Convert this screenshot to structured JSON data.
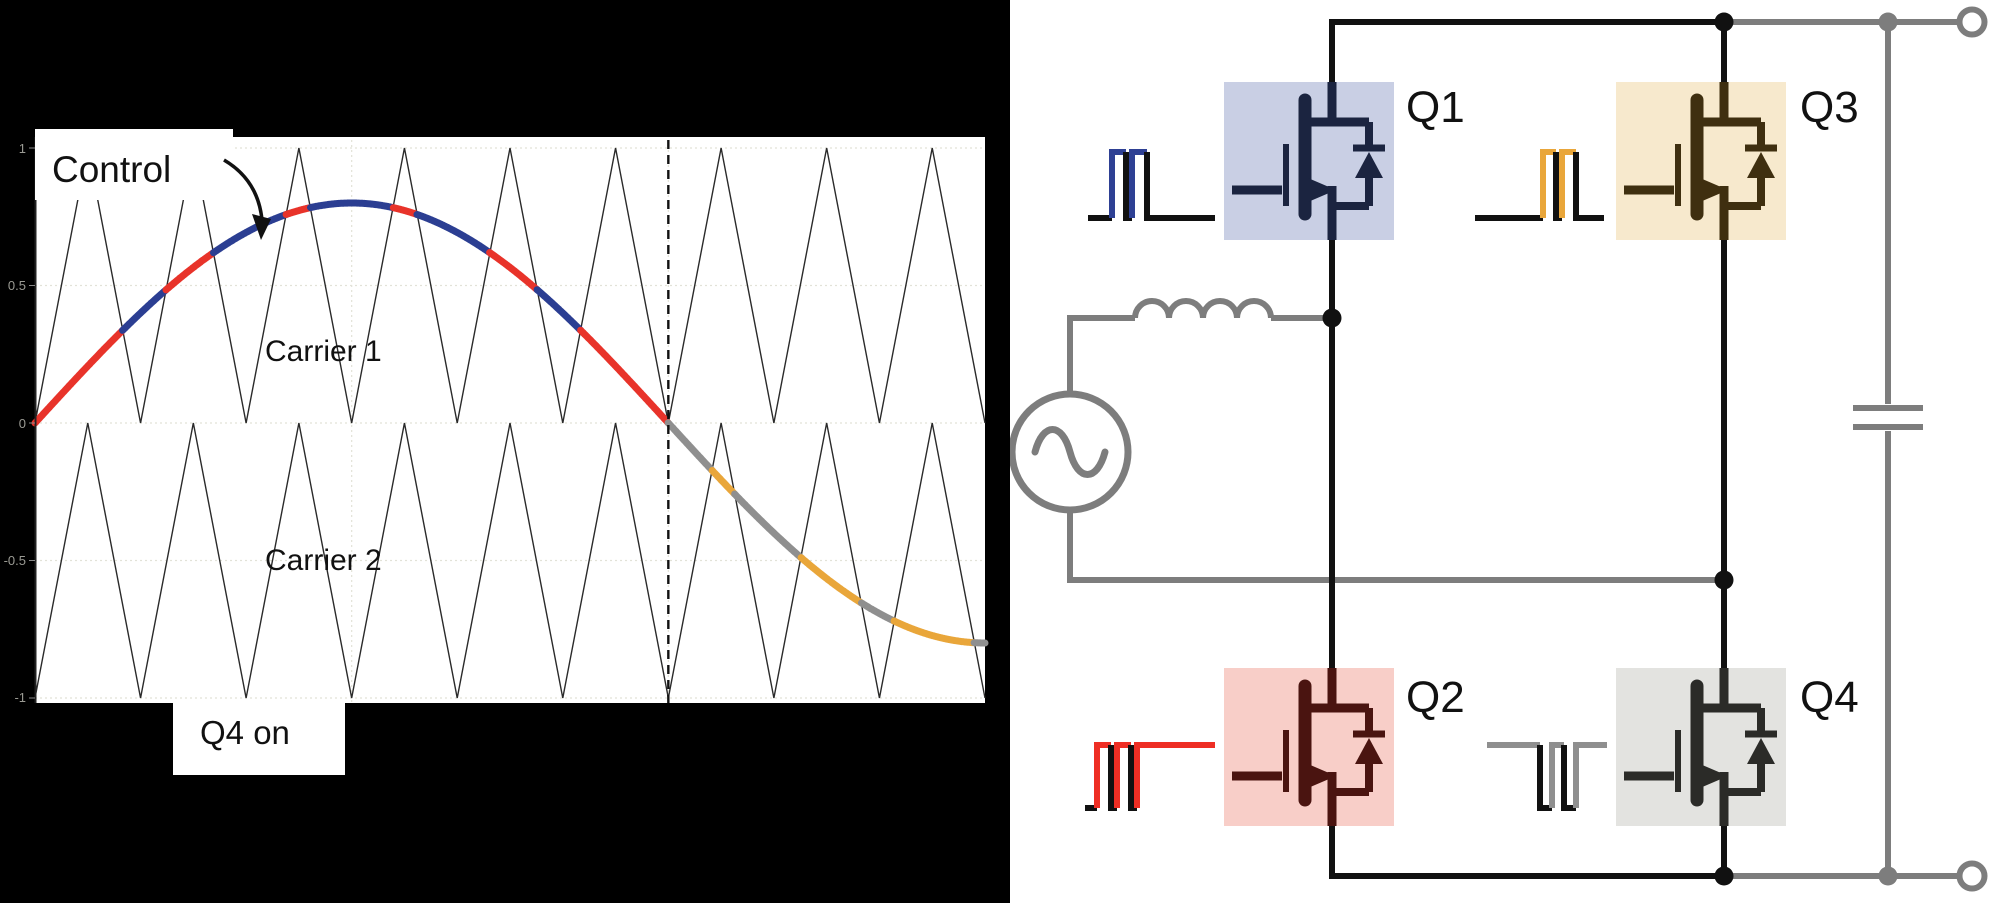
{
  "page": {
    "left_background": "#000000",
    "right_background": "#ffffff"
  },
  "chart": {
    "control_label": "Control",
    "carrier1_label": "Carrier 1",
    "carrier2_label": "Carrier 2",
    "q4_on_label": "Q4 on"
  },
  "chart_data": {
    "type": "line",
    "title": "",
    "xlabel": "",
    "ylabel": "",
    "ylim": [
      -1,
      1
    ],
    "x_span_radians": 4.71239,
    "y_ticks": [
      "1",
      "0.5",
      "0",
      "-0.5",
      "-1"
    ],
    "y_tick_values": [
      1,
      0.5,
      0,
      -0.5,
      -1
    ],
    "grid_x_radians": [
      1.5708,
      3.14159
    ],
    "dashed_divider_radians": 3.14159,
    "series": [
      {
        "name": "Control",
        "kind": "sine",
        "amplitude": 0.8,
        "phase_start": 0
      },
      {
        "name": "Carrier 1",
        "kind": "triangle",
        "range": [
          0,
          1
        ],
        "periods": 9,
        "color": "#2a2a2a"
      },
      {
        "name": "Carrier 2",
        "kind": "triangle",
        "range": [
          -1,
          0
        ],
        "periods": 9,
        "color": "#2a2a2a"
      }
    ],
    "control_segment_colors": {
      "pos_above_carrier1": "#2b3e92",
      "pos_below_carrier1": "#e8332a",
      "neg_above_carrier2": "#8f8f8f",
      "neg_below_carrier2": "#e9a63a"
    },
    "gridline_color": "#e2e2d8",
    "divider_color": "#111111",
    "control_linewidth": 7,
    "carrier_linewidth": 1.4
  },
  "circuit": {
    "wire_black": "#111111",
    "wire_gray": "#7d7d7d",
    "source": {
      "type": "ac-source",
      "color": "#7d7d7d"
    },
    "inductor": {
      "color": "#7d7d7d",
      "turns": 4
    },
    "capacitor": {
      "color": "#7d7d7d"
    },
    "terminals": {
      "count": 2,
      "style": "open-circle",
      "color": "#7d7d7d"
    },
    "transistors": [
      {
        "label": "Q1",
        "box_color": "#c9cfe4",
        "symbol_color": "#1b2440",
        "gate_color": "#2e4094",
        "gate_waveform": {
          "description": "low baseline with two narrow high pulses at left",
          "segments": [
            [
              "#111111",
              "78,218 102,218"
            ],
            [
              "#2e4094",
              "102,218 102,152 116,152"
            ],
            [
              "#111111",
              "116,152 116,218 122,218"
            ],
            [
              "#2e4094",
              "122,218 122,152 137,152"
            ],
            [
              "#111111",
              "137,152 137,218 205,218"
            ]
          ]
        }
      },
      {
        "label": "Q3",
        "box_color": "#f7e9cd",
        "symbol_color": "#3f2f10",
        "gate_color": "#e9a63a",
        "gate_waveform": {
          "description": "low baseline with two narrow high pulses at right",
          "segments": [
            [
              "#111111",
              "465,218 533,218"
            ],
            [
              "#e9a63a",
              "533,218 533,152 546,152"
            ],
            [
              "#111111",
              "546,152 546,218 552,218"
            ],
            [
              "#e9a63a",
              "552,218 552,152 566,152"
            ],
            [
              "#111111",
              "566,152 566,218 594,218"
            ]
          ]
        }
      },
      {
        "label": "Q2",
        "box_color": "#f8cec8",
        "symbol_color": "#4a1410",
        "gate_color": "#ee2e24",
        "gate_waveform": {
          "description": "high baseline with two narrow low notches at left",
          "segments": [
            [
              "#111111",
              "75,808 87,808"
            ],
            [
              "#ee2e24",
              "87,808 87,745 101,745"
            ],
            [
              "#111111",
              "101,745 101,808 107,808"
            ],
            [
              "#ee2e24",
              "107,808 107,745 121,745"
            ],
            [
              "#111111",
              "121,745 121,808 127,808"
            ],
            [
              "#ee2e24",
              "127,808 127,745 205,745"
            ]
          ]
        }
      },
      {
        "label": "Q4",
        "box_color": "#e3e3e0",
        "symbol_color": "#2b2b28",
        "gate_color": "#8f8f8f",
        "gate_waveform": {
          "description": "high baseline with two narrow low notches at right",
          "segments": [
            [
              "#8f8f8f",
              "477,745 530,745"
            ],
            [
              "#111111",
              "530,745 530,808 542,808"
            ],
            [
              "#8f8f8f",
              "542,808 542,745 554,745"
            ],
            [
              "#111111",
              "554,745 554,808 566,808"
            ],
            [
              "#8f8f8f",
              "566,808 566,745 597,745"
            ]
          ]
        }
      }
    ]
  }
}
